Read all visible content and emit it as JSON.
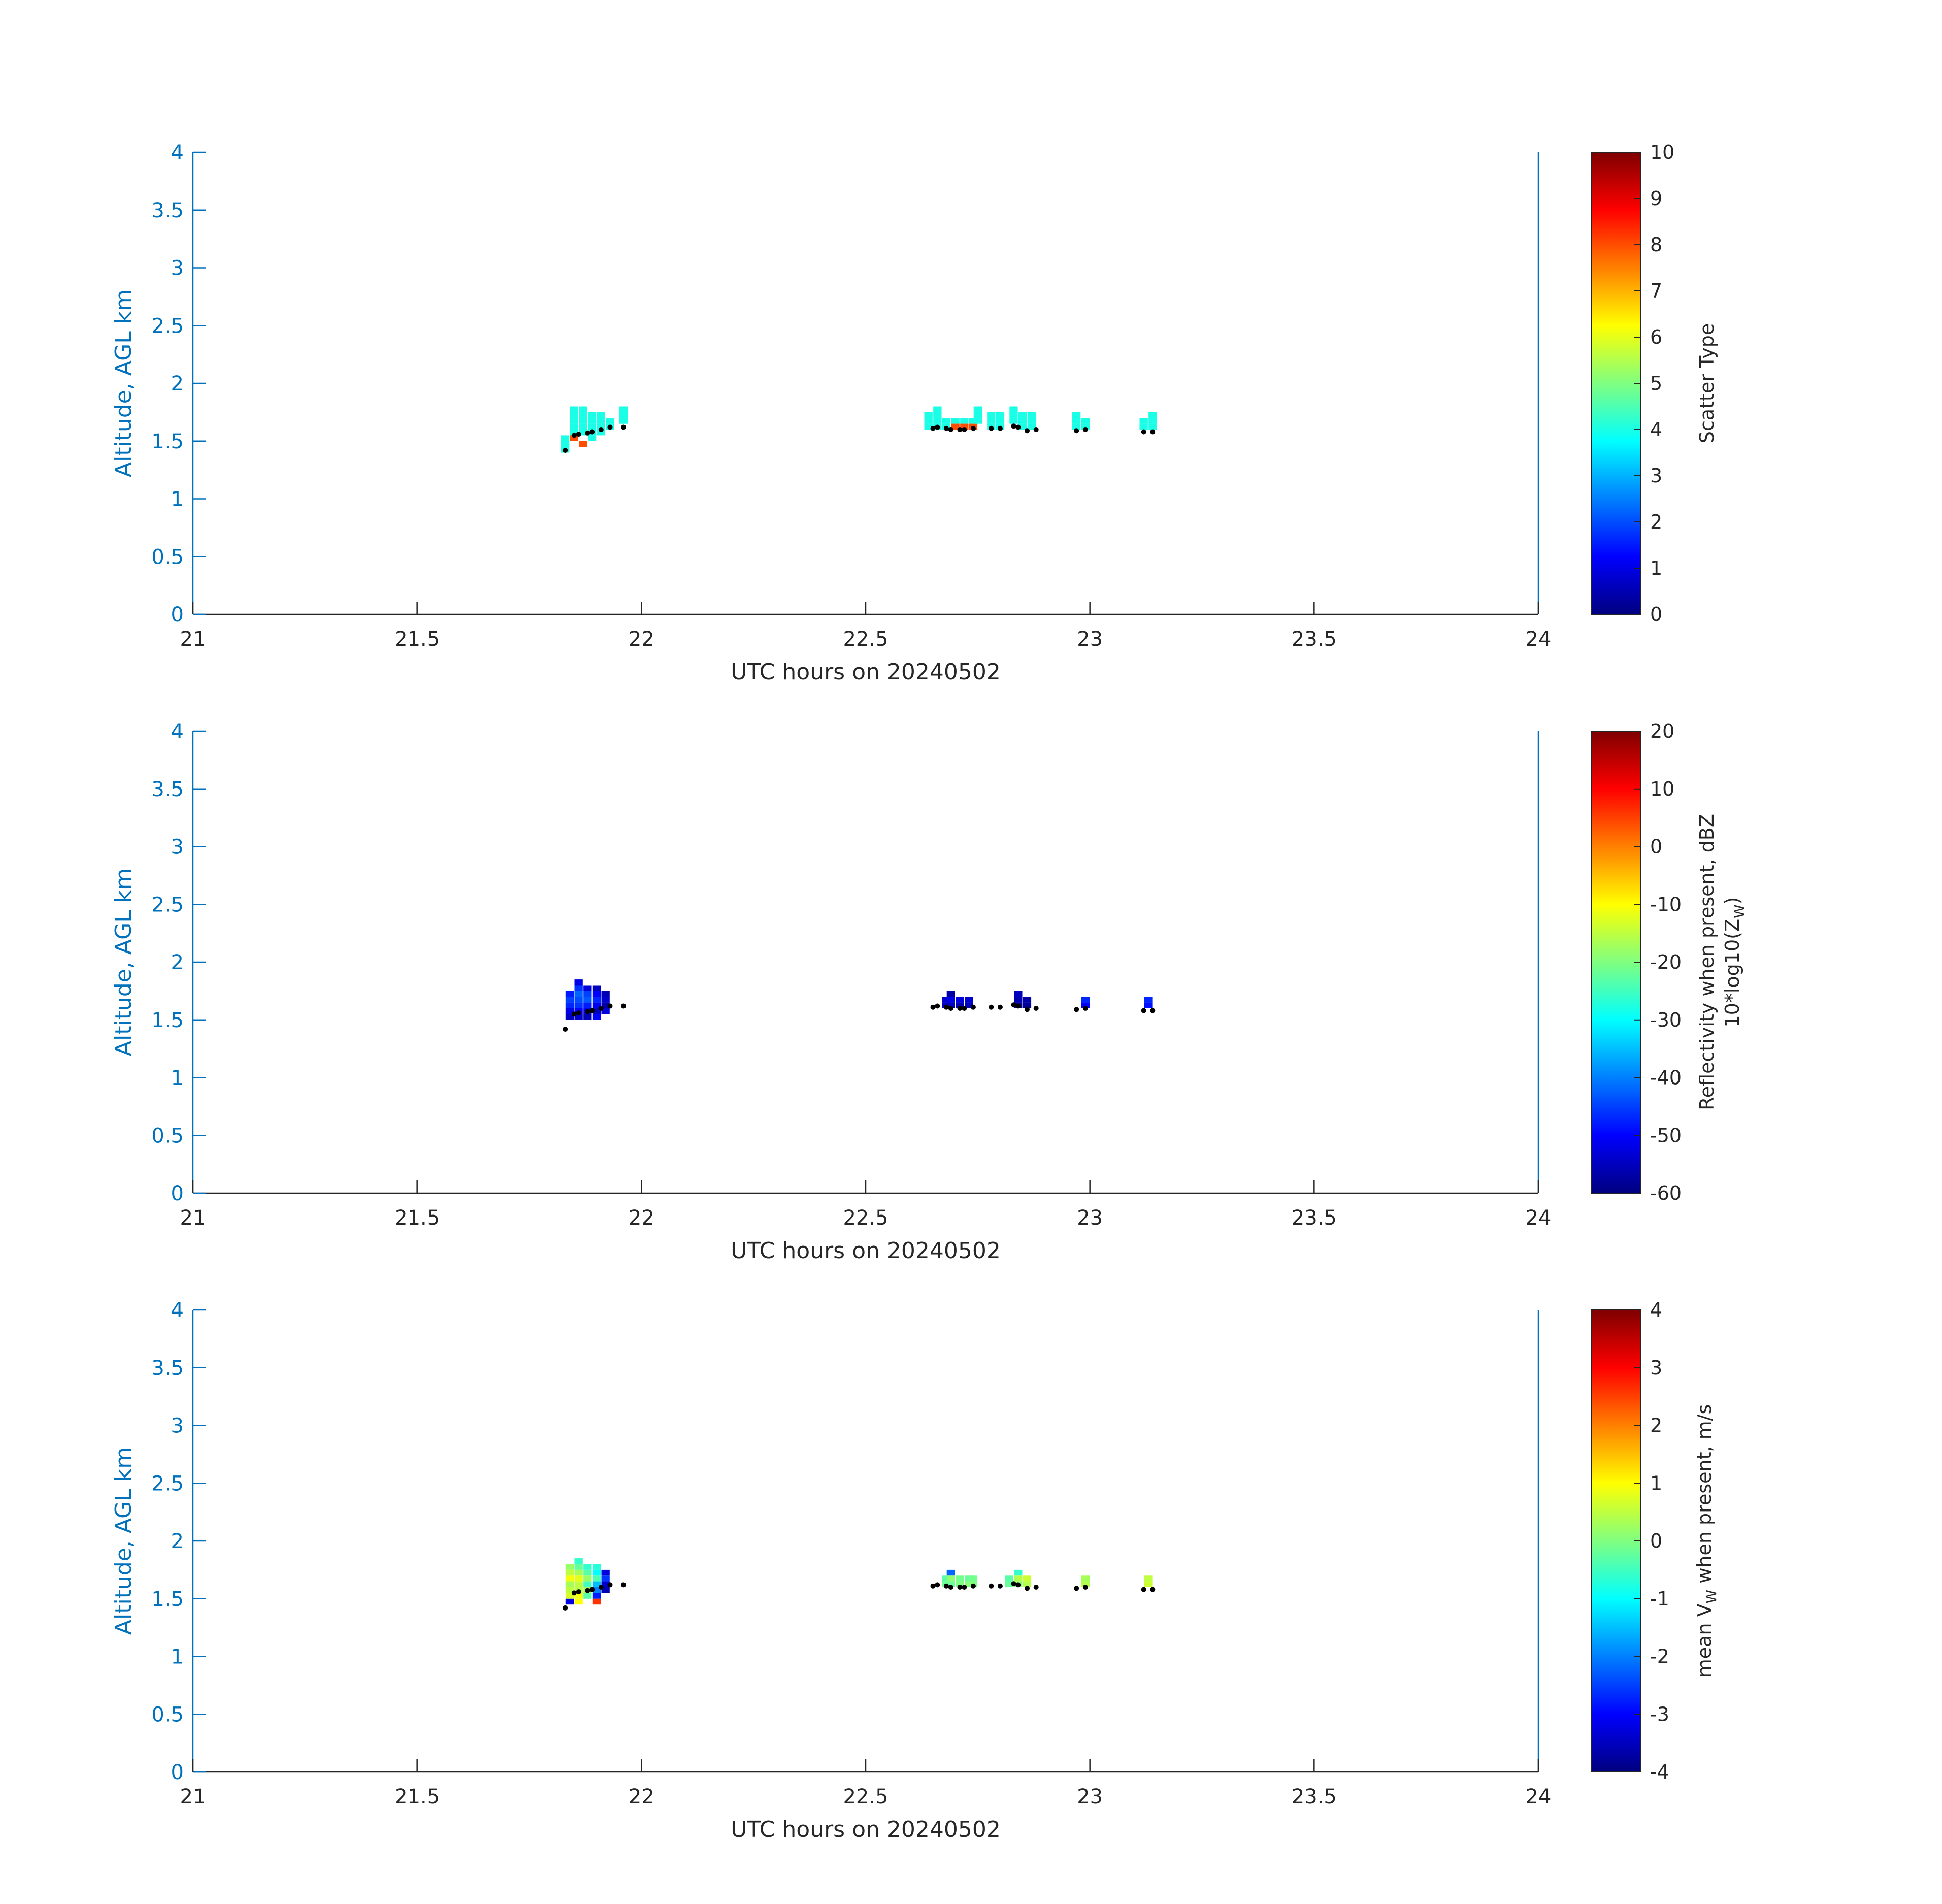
{
  "chart_data": [
    {
      "type": "heatmap",
      "xlabel": "UTC hours on 20240502",
      "ylabel": "Altitude, AGL km",
      "xlim": [
        21,
        24
      ],
      "ylim": [
        0,
        4
      ],
      "xticks": [
        "21",
        "21.5",
        "22",
        "22.5",
        "23",
        "23.5",
        "24"
      ],
      "yticks": [
        "0",
        "0.5",
        "1",
        "1.5",
        "2",
        "2.5",
        "3",
        "3.5",
        "4"
      ],
      "colorbar": {
        "label_lines": [
          "Scatter Type"
        ],
        "clim": [
          0,
          10
        ],
        "ticks": [
          "0",
          "1",
          "2",
          "3",
          "4",
          "5",
          "6",
          "7",
          "8",
          "9",
          "10"
        ],
        "colormap": "jet"
      },
      "cells": [
        [
          21.83,
          1.4,
          4
        ],
        [
          21.83,
          1.45,
          4
        ],
        [
          21.83,
          1.5,
          4
        ],
        [
          21.85,
          1.7,
          4
        ],
        [
          21.85,
          1.65,
          4
        ],
        [
          21.85,
          1.6,
          4
        ],
        [
          21.85,
          1.55,
          4
        ],
        [
          21.85,
          1.75,
          4
        ],
        [
          21.85,
          1.5,
          8
        ],
        [
          21.87,
          1.75,
          4
        ],
        [
          21.87,
          1.7,
          4
        ],
        [
          21.87,
          1.65,
          4
        ],
        [
          21.87,
          1.6,
          4
        ],
        [
          21.87,
          1.55,
          4
        ],
        [
          21.87,
          1.45,
          8
        ],
        [
          21.89,
          1.7,
          4
        ],
        [
          21.89,
          1.65,
          4
        ],
        [
          21.89,
          1.6,
          4
        ],
        [
          21.89,
          1.55,
          4
        ],
        [
          21.89,
          1.5,
          4
        ],
        [
          21.91,
          1.7,
          4
        ],
        [
          21.91,
          1.65,
          4
        ],
        [
          21.91,
          1.6,
          4
        ],
        [
          21.91,
          1.55,
          4
        ],
        [
          21.93,
          1.65,
          4
        ],
        [
          21.93,
          1.6,
          4
        ],
        [
          21.96,
          1.75,
          4
        ],
        [
          21.96,
          1.7,
          4
        ],
        [
          21.96,
          1.65,
          4
        ],
        [
          22.64,
          1.7,
          4
        ],
        [
          22.64,
          1.65,
          4
        ],
        [
          22.64,
          1.6,
          4
        ],
        [
          22.66,
          1.75,
          4
        ],
        [
          22.66,
          1.7,
          4
        ],
        [
          22.66,
          1.65,
          4
        ],
        [
          22.66,
          1.6,
          4
        ],
        [
          22.68,
          1.65,
          4
        ],
        [
          22.68,
          1.6,
          4
        ],
        [
          22.7,
          1.65,
          4
        ],
        [
          22.7,
          1.6,
          8
        ],
        [
          22.72,
          1.65,
          4
        ],
        [
          22.72,
          1.6,
          8
        ],
        [
          22.74,
          1.65,
          4
        ],
        [
          22.74,
          1.6,
          8
        ],
        [
          22.75,
          1.75,
          4
        ],
        [
          22.75,
          1.7,
          4
        ],
        [
          22.75,
          1.65,
          4
        ],
        [
          22.78,
          1.7,
          4
        ],
        [
          22.78,
          1.65,
          4
        ],
        [
          22.78,
          1.6,
          4
        ],
        [
          22.8,
          1.7,
          4
        ],
        [
          22.8,
          1.65,
          4
        ],
        [
          22.8,
          1.6,
          4
        ],
        [
          22.83,
          1.75,
          4
        ],
        [
          22.83,
          1.7,
          4
        ],
        [
          22.83,
          1.65,
          4
        ],
        [
          22.85,
          1.7,
          4
        ],
        [
          22.85,
          1.65,
          4
        ],
        [
          22.85,
          1.6,
          4
        ],
        [
          22.87,
          1.7,
          4
        ],
        [
          22.87,
          1.65,
          4
        ],
        [
          22.87,
          1.6,
          4
        ],
        [
          22.97,
          1.7,
          4
        ],
        [
          22.97,
          1.65,
          4
        ],
        [
          22.97,
          1.6,
          4
        ],
        [
          22.99,
          1.65,
          4
        ],
        [
          22.99,
          1.6,
          4
        ],
        [
          23.12,
          1.65,
          4
        ],
        [
          23.12,
          1.6,
          4
        ],
        [
          23.14,
          1.7,
          4
        ],
        [
          23.14,
          1.65,
          4
        ],
        [
          23.14,
          1.6,
          4
        ]
      ],
      "base_points": [
        [
          21.83,
          1.42
        ],
        [
          21.85,
          1.55
        ],
        [
          21.86,
          1.56
        ],
        [
          21.88,
          1.57
        ],
        [
          21.89,
          1.58
        ],
        [
          21.91,
          1.6
        ],
        [
          21.93,
          1.62
        ],
        [
          21.96,
          1.62
        ],
        [
          22.65,
          1.61
        ],
        [
          22.66,
          1.62
        ],
        [
          22.68,
          1.61
        ],
        [
          22.69,
          1.6
        ],
        [
          22.71,
          1.6
        ],
        [
          22.72,
          1.6
        ],
        [
          22.74,
          1.61
        ],
        [
          22.78,
          1.61
        ],
        [
          22.8,
          1.61
        ],
        [
          22.83,
          1.63
        ],
        [
          22.84,
          1.62
        ],
        [
          22.86,
          1.59
        ],
        [
          22.88,
          1.6
        ],
        [
          22.97,
          1.59
        ],
        [
          22.99,
          1.6
        ],
        [
          23.12,
          1.58
        ],
        [
          23.14,
          1.58
        ]
      ]
    },
    {
      "type": "heatmap",
      "xlabel": "UTC hours on 20240502",
      "ylabel": "Altitude, AGL km",
      "xlim": [
        21,
        24
      ],
      "ylim": [
        0,
        4
      ],
      "xticks": [
        "21",
        "21.5",
        "22",
        "22.5",
        "23",
        "23.5",
        "24"
      ],
      "yticks": [
        "0",
        "0.5",
        "1",
        "1.5",
        "2",
        "2.5",
        "3",
        "3.5",
        "4"
      ],
      "colorbar": {
        "label_lines": [
          "Reflectivity when present, dBZ",
          "10*log10(Z",
          "W",
          ")"
        ],
        "clim": [
          -60,
          20
        ],
        "ticks": [
          "-60",
          "-50",
          "-40",
          "-30",
          "-20",
          "-10",
          "0",
          "10",
          "20"
        ],
        "colormap": "jet"
      },
      "cells": [
        [
          21.84,
          1.7,
          -48
        ],
        [
          21.84,
          1.65,
          -45
        ],
        [
          21.84,
          1.6,
          -47
        ],
        [
          21.84,
          1.55,
          -52
        ],
        [
          21.84,
          1.5,
          -55
        ],
        [
          21.86,
          1.8,
          -52
        ],
        [
          21.86,
          1.75,
          -46
        ],
        [
          21.86,
          1.7,
          -42
        ],
        [
          21.86,
          1.65,
          -44
        ],
        [
          21.86,
          1.6,
          -46
        ],
        [
          21.86,
          1.55,
          -50
        ],
        [
          21.86,
          1.5,
          -54
        ],
        [
          21.88,
          1.75,
          -53
        ],
        [
          21.88,
          1.7,
          -45
        ],
        [
          21.88,
          1.65,
          -43
        ],
        [
          21.88,
          1.6,
          -48
        ],
        [
          21.88,
          1.55,
          -52
        ],
        [
          21.88,
          1.5,
          -56
        ],
        [
          21.9,
          1.75,
          -55
        ],
        [
          21.9,
          1.7,
          -50
        ],
        [
          21.9,
          1.65,
          -47
        ],
        [
          21.9,
          1.6,
          -51
        ],
        [
          21.9,
          1.55,
          -55
        ],
        [
          21.9,
          1.5,
          -50
        ],
        [
          21.92,
          1.7,
          -56
        ],
        [
          21.92,
          1.65,
          -54
        ],
        [
          21.92,
          1.6,
          -57
        ],
        [
          21.92,
          1.55,
          -53
        ],
        [
          22.68,
          1.65,
          -54
        ],
        [
          22.68,
          1.6,
          -55
        ],
        [
          22.69,
          1.7,
          -57
        ],
        [
          22.69,
          1.65,
          -52
        ],
        [
          22.69,
          1.6,
          -55
        ],
        [
          22.71,
          1.65,
          -53
        ],
        [
          22.71,
          1.6,
          -56
        ],
        [
          22.73,
          1.65,
          -54
        ],
        [
          22.73,
          1.6,
          -55
        ],
        [
          22.84,
          1.65,
          -56
        ],
        [
          22.84,
          1.6,
          -58
        ],
        [
          22.84,
          1.7,
          -55
        ],
        [
          22.86,
          1.65,
          -57
        ],
        [
          22.86,
          1.6,
          -58
        ],
        [
          22.99,
          1.65,
          -47
        ],
        [
          22.99,
          1.6,
          -50
        ],
        [
          23.13,
          1.65,
          -47
        ],
        [
          23.13,
          1.6,
          -49
        ]
      ],
      "base_points": [
        [
          21.83,
          1.42
        ],
        [
          21.85,
          1.55
        ],
        [
          21.86,
          1.56
        ],
        [
          21.88,
          1.57
        ],
        [
          21.89,
          1.58
        ],
        [
          21.91,
          1.6
        ],
        [
          21.93,
          1.62
        ],
        [
          21.96,
          1.62
        ],
        [
          22.65,
          1.61
        ],
        [
          22.66,
          1.62
        ],
        [
          22.68,
          1.61
        ],
        [
          22.69,
          1.6
        ],
        [
          22.71,
          1.6
        ],
        [
          22.72,
          1.6
        ],
        [
          22.74,
          1.61
        ],
        [
          22.78,
          1.61
        ],
        [
          22.8,
          1.61
        ],
        [
          22.83,
          1.63
        ],
        [
          22.84,
          1.62
        ],
        [
          22.86,
          1.59
        ],
        [
          22.88,
          1.6
        ],
        [
          22.97,
          1.59
        ],
        [
          22.99,
          1.6
        ],
        [
          23.12,
          1.58
        ],
        [
          23.14,
          1.58
        ]
      ]
    },
    {
      "type": "heatmap",
      "xlabel": "UTC hours on 20240502",
      "ylabel": "Altitude, AGL km",
      "xlim": [
        21,
        24
      ],
      "ylim": [
        0,
        4
      ],
      "xticks": [
        "21",
        "21.5",
        "22",
        "22.5",
        "23",
        "23.5",
        "24"
      ],
      "yticks": [
        "0",
        "0.5",
        "1",
        "1.5",
        "2",
        "2.5",
        "3",
        "3.5",
        "4"
      ],
      "colorbar": {
        "label_lines": [
          "mean V",
          "W",
          " when present, m/s"
        ],
        "clim": [
          -4,
          4
        ],
        "ticks": [
          "-4",
          "-3",
          "-2",
          "-1",
          "0",
          "1",
          "2",
          "3",
          "4"
        ],
        "colormap": "jet"
      },
      "cells": [
        [
          21.84,
          1.75,
          0.2
        ],
        [
          21.84,
          1.7,
          0.5
        ],
        [
          21.84,
          1.65,
          0.9
        ],
        [
          21.84,
          1.6,
          0.3
        ],
        [
          21.84,
          1.55,
          0.5
        ],
        [
          21.84,
          1.5,
          0.7
        ],
        [
          21.84,
          1.45,
          -3.2
        ],
        [
          21.86,
          1.8,
          -0.6
        ],
        [
          21.86,
          1.75,
          -0.2
        ],
        [
          21.86,
          1.7,
          0.3
        ],
        [
          21.86,
          1.65,
          0.8
        ],
        [
          21.86,
          1.6,
          0.5
        ],
        [
          21.86,
          1.55,
          0.4
        ],
        [
          21.86,
          1.5,
          0.9
        ],
        [
          21.86,
          1.45,
          1.0
        ],
        [
          21.88,
          1.75,
          -0.6
        ],
        [
          21.88,
          1.7,
          -0.3
        ],
        [
          21.88,
          1.65,
          0.2
        ],
        [
          21.88,
          1.6,
          -0.5
        ],
        [
          21.88,
          1.55,
          0.3
        ],
        [
          21.88,
          1.5,
          -0.3
        ],
        [
          21.9,
          1.75,
          -0.7
        ],
        [
          21.9,
          1.7,
          -1.0
        ],
        [
          21.9,
          1.65,
          -0.4
        ],
        [
          21.9,
          1.6,
          -1.5
        ],
        [
          21.9,
          1.55,
          -2.0
        ],
        [
          21.9,
          1.5,
          -2.8
        ],
        [
          21.9,
          1.45,
          2.6
        ],
        [
          21.92,
          1.7,
          -3.3
        ],
        [
          21.92,
          1.65,
          -2.6
        ],
        [
          21.92,
          1.6,
          -3.4
        ],
        [
          21.92,
          1.55,
          -3.6
        ],
        [
          22.68,
          1.65,
          -0.3
        ],
        [
          22.68,
          1.6,
          -0.1
        ],
        [
          22.69,
          1.7,
          -2.2
        ],
        [
          22.69,
          1.65,
          0.1
        ],
        [
          22.69,
          1.6,
          -0.2
        ],
        [
          22.71,
          1.65,
          -0.1
        ],
        [
          22.71,
          1.6,
          0.0
        ],
        [
          22.73,
          1.65,
          -0.2
        ],
        [
          22.73,
          1.6,
          0.1
        ],
        [
          22.74,
          1.65,
          -0.1
        ],
        [
          22.74,
          1.6,
          0.0
        ],
        [
          22.82,
          1.65,
          -0.3
        ],
        [
          22.82,
          1.6,
          -0.2
        ],
        [
          22.84,
          1.7,
          -0.6
        ],
        [
          22.84,
          1.65,
          0.4
        ],
        [
          22.84,
          1.6,
          0.1
        ],
        [
          22.86,
          1.65,
          0.6
        ],
        [
          22.86,
          1.6,
          0.4
        ],
        [
          22.99,
          1.65,
          0.3
        ],
        [
          22.99,
          1.6,
          0.4
        ],
        [
          23.13,
          1.65,
          0.5
        ],
        [
          23.13,
          1.6,
          0.6
        ]
      ],
      "base_points": [
        [
          21.83,
          1.42
        ],
        [
          21.85,
          1.55
        ],
        [
          21.86,
          1.56
        ],
        [
          21.88,
          1.57
        ],
        [
          21.89,
          1.58
        ],
        [
          21.91,
          1.6
        ],
        [
          21.93,
          1.62
        ],
        [
          21.96,
          1.62
        ],
        [
          22.65,
          1.61
        ],
        [
          22.66,
          1.62
        ],
        [
          22.68,
          1.61
        ],
        [
          22.69,
          1.6
        ],
        [
          22.71,
          1.6
        ],
        [
          22.72,
          1.6
        ],
        [
          22.74,
          1.61
        ],
        [
          22.78,
          1.61
        ],
        [
          22.8,
          1.61
        ],
        [
          22.83,
          1.63
        ],
        [
          22.84,
          1.62
        ],
        [
          22.86,
          1.59
        ],
        [
          22.88,
          1.6
        ],
        [
          22.97,
          1.59
        ],
        [
          22.99,
          1.6
        ],
        [
          23.12,
          1.58
        ],
        [
          23.14,
          1.58
        ]
      ]
    }
  ]
}
